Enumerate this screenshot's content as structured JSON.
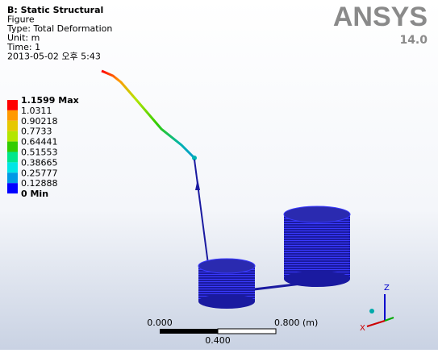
{
  "header": {
    "lines": [
      "B: Static Structural",
      "Figure",
      "Type: Total Deformation",
      "Unit: m",
      "Time: 1",
      "2013-05-02 오후 5:43"
    ]
  },
  "logo": {
    "name": "ANSYS",
    "version": "14.0"
  },
  "legend": {
    "labels": [
      "1.1599 Max",
      "1.0311",
      "0.90218",
      "0.7733",
      "0.64441",
      "0.51553",
      "0.38665",
      "0.25777",
      "0.12888",
      "0 Min"
    ],
    "colors": [
      "#ff0000",
      "#ff9900",
      "#e6c800",
      "#b3e600",
      "#33cc00",
      "#00e68c",
      "#00e6e6",
      "#0099e6",
      "#0000ff"
    ]
  },
  "scale_bar": {
    "left": "0.000",
    "middle": "0.400",
    "right": "0.800 (m)"
  },
  "triad": {
    "z": "Z",
    "x": "X"
  }
}
